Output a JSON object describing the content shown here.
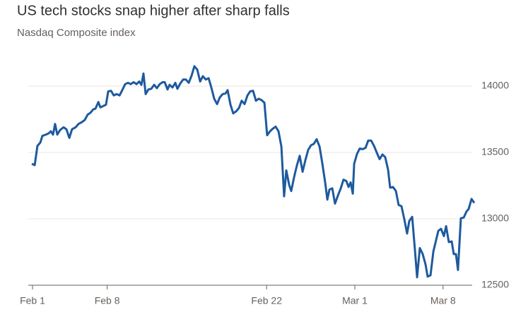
{
  "chart_data": {
    "type": "line",
    "title": "US tech stocks snap higher after sharp falls",
    "subtitle": "Nasdaq Composite index",
    "x": [
      -0.04,
      0.13,
      0.29,
      0.46,
      0.58,
      0.79,
      0.96,
      1.08,
      1.21,
      1.33,
      1.46,
      1.63,
      1.83,
      2.0,
      2.17,
      2.33,
      2.54,
      2.71,
      2.92,
      3.08,
      3.25,
      3.42,
      3.58,
      3.71,
      3.88,
      4.0,
      4.17,
      4.33,
      4.46,
      4.63,
      4.79,
      4.96,
      5.13,
      5.29,
      5.46,
      5.63,
      5.79,
      5.96,
      6.13,
      6.29,
      6.42,
      6.54,
      6.67,
      6.83,
      7.0,
      7.17,
      7.33,
      7.5,
      7.67,
      7.79,
      7.96,
      8.08,
      8.25,
      8.42,
      8.54,
      8.71,
      8.88,
      9.04,
      9.21,
      9.38,
      9.54,
      9.71,
      9.88,
      10.04,
      10.21,
      10.38,
      10.54,
      10.71,
      10.88,
      11.04,
      11.21,
      11.38,
      11.5,
      11.67,
      11.83,
      12.0,
      12.17,
      12.33,
      12.5,
      12.67,
      12.83,
      13.0,
      13.17,
      13.33,
      13.5,
      13.67,
      13.83,
      14.0,
      14.17,
      14.33,
      14.5,
      14.67,
      14.83,
      14.96,
      15.13,
      15.25,
      15.42,
      15.58,
      15.75,
      15.92,
      16.08,
      16.25,
      16.42,
      16.58,
      16.75,
      16.92,
      17.08,
      17.25,
      17.38,
      17.5,
      17.67,
      17.83,
      18.0,
      18.17,
      18.33,
      18.5,
      18.63,
      18.75,
      18.88,
      18.96,
      19.13,
      19.29,
      19.46,
      19.63,
      19.79,
      19.96,
      20.13,
      20.29,
      20.46,
      20.63,
      20.79,
      20.96,
      21.08,
      21.25,
      21.42,
      21.58,
      21.75,
      21.92,
      22.08,
      22.21,
      22.38,
      22.54,
      22.67,
      22.83,
      23.0,
      23.17,
      23.29,
      23.46,
      23.63,
      23.79,
      23.92,
      24.08,
      24.25,
      24.38,
      24.54,
      24.71,
      24.83,
      24.96,
      25.08,
      25.25,
      25.42,
      25.58,
      25.71,
      25.88,
      26.04
    ],
    "series": [
      {
        "name": "Nasdaq Composite",
        "color": "#1d5a9e",
        "values": [
          13415,
          13405,
          13550,
          13575,
          13625,
          13635,
          13645,
          13660,
          13635,
          13715,
          13635,
          13670,
          13690,
          13675,
          13610,
          13675,
          13690,
          13715,
          13730,
          13745,
          13785,
          13800,
          13825,
          13830,
          13880,
          13840,
          13850,
          13860,
          13960,
          13965,
          13930,
          13940,
          13930,
          13970,
          14015,
          14025,
          14015,
          14030,
          14015,
          14035,
          14010,
          14095,
          13940,
          13975,
          13980,
          14010,
          13985,
          14015,
          14030,
          14030,
          13975,
          14010,
          13990,
          14025,
          13980,
          14020,
          14050,
          14050,
          14025,
          14080,
          14150,
          14125,
          14035,
          14075,
          14050,
          14060,
          13990,
          13905,
          13865,
          13915,
          13940,
          13945,
          13970,
          13860,
          13795,
          13810,
          13835,
          13890,
          13865,
          13930,
          13960,
          13965,
          13890,
          13905,
          13895,
          13875,
          13630,
          13660,
          13680,
          13695,
          13660,
          13545,
          13170,
          13365,
          13255,
          13210,
          13315,
          13400,
          13475,
          13355,
          13440,
          13520,
          13555,
          13565,
          13600,
          13545,
          13420,
          13275,
          13145,
          13220,
          13230,
          13115,
          13175,
          13230,
          13295,
          13285,
          13240,
          13275,
          13190,
          13415,
          13490,
          13530,
          13525,
          13535,
          13590,
          13590,
          13550,
          13500,
          13450,
          13485,
          13465,
          13370,
          13235,
          13240,
          13210,
          13105,
          13095,
          12995,
          12890,
          12985,
          13015,
          12770,
          12560,
          12780,
          12735,
          12655,
          12565,
          12575,
          12755,
          12840,
          12910,
          12925,
          12870,
          12945,
          12825,
          12830,
          12735,
          12735,
          12615,
          13005,
          13010,
          13055,
          13075,
          13150,
          13120
        ]
      }
    ],
    "xlim": [
      -0.1,
      26.1
    ],
    "xticks": [
      {
        "value": 0,
        "label": "Feb 1"
      },
      {
        "value": 4.4,
        "label": "Feb 8"
      },
      {
        "value": 13.8,
        "label": "Feb 22"
      },
      {
        "value": 19.0,
        "label": "Mar 1"
      },
      {
        "value": 24.2,
        "label": "Mar 8"
      }
    ],
    "ylim": [
      12500,
      14200
    ],
    "yticks": [
      12500,
      13000,
      13500,
      14000
    ],
    "grid": true
  }
}
